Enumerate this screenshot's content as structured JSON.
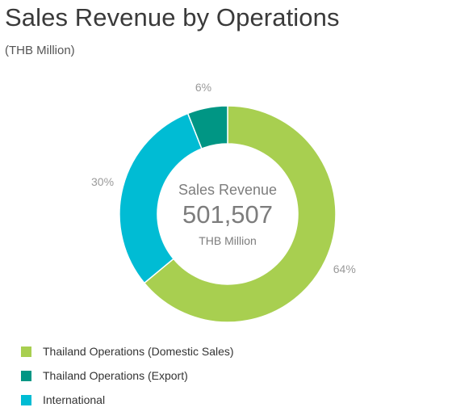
{
  "header": {
    "title": "Sales Revenue by Operations",
    "subtitle": "(THB Million)"
  },
  "chart_data": {
    "type": "pie",
    "style": "donut",
    "center": {
      "label": "Sales Revenue",
      "value": "501,507",
      "unit": "THB Million"
    },
    "slices": [
      {
        "name": "Thailand Operations (Domestic Sales)",
        "value": 64,
        "label": "64%",
        "color": "#a8cf50"
      },
      {
        "name": "International",
        "value": 30,
        "label": "30%",
        "color": "#00bcd4"
      },
      {
        "name": "Thailand Operations (Export)",
        "value": 6,
        "label": "6%",
        "color": "#009684"
      }
    ],
    "legend": [
      {
        "name": "Thailand Operations (Domestic Sales)",
        "color": "#a8cf50"
      },
      {
        "name": "Thailand Operations (Export)",
        "color": "#009684"
      },
      {
        "name": "International",
        "color": "#00bcd4"
      }
    ],
    "legend_position": "bottom-left"
  }
}
